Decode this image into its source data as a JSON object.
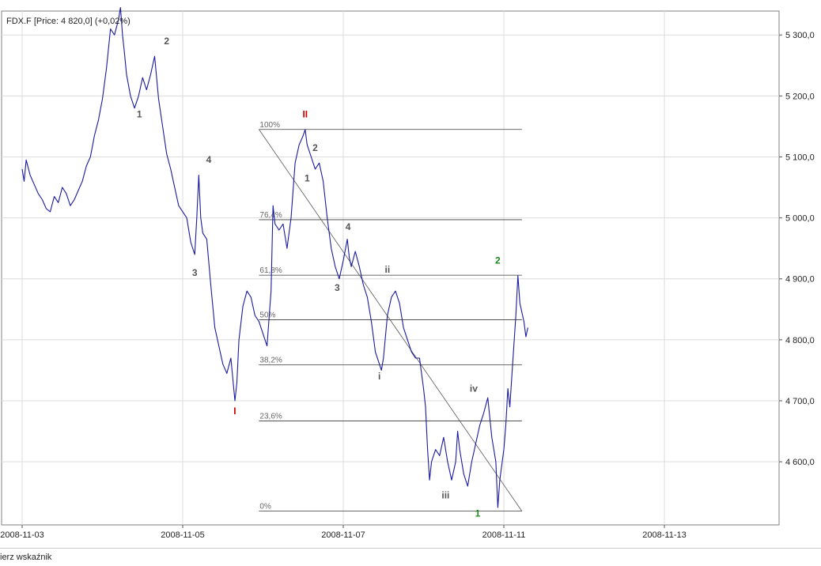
{
  "chart_data": {
    "type": "line",
    "title": "FDX.F [Price: 4 820,0] (+0,02%)",
    "x_ticks": [
      "2008-11-03",
      "2008-11-05",
      "2008-11-07",
      "2008-11-11",
      "2008-11-13"
    ],
    "y_ticks": [
      "4 600,0",
      "4 700,0",
      "4 800,0",
      "4 900,0",
      "5 000,0",
      "5 100,0",
      "5 200,0",
      "5 300,0"
    ],
    "y_tick_values": [
      4600,
      4700,
      4800,
      4900,
      5000,
      5100,
      5200,
      5300
    ],
    "ylim": [
      4510,
      5355
    ],
    "grid": true,
    "series": [
      {
        "color": "#1a1aa0",
        "points": [
          [
            0.0,
            5080
          ],
          [
            0.05,
            5060
          ],
          [
            0.1,
            5095
          ],
          [
            0.2,
            5070
          ],
          [
            0.3,
            5055
          ],
          [
            0.4,
            5040
          ],
          [
            0.5,
            5030
          ],
          [
            0.6,
            5015
          ],
          [
            0.7,
            5010
          ],
          [
            0.8,
            5035
          ],
          [
            0.9,
            5025
          ],
          [
            1.0,
            5050
          ],
          [
            1.1,
            5040
          ],
          [
            1.2,
            5020
          ],
          [
            1.3,
            5030
          ],
          [
            1.4,
            5045
          ],
          [
            1.5,
            5060
          ],
          [
            1.6,
            5085
          ],
          [
            1.7,
            5100
          ],
          [
            1.8,
            5135
          ],
          [
            1.9,
            5160
          ],
          [
            2.0,
            5195
          ],
          [
            2.1,
            5245
          ],
          [
            2.2,
            5310
          ],
          [
            2.3,
            5300
          ],
          [
            2.4,
            5325
          ],
          [
            2.45,
            5345
          ],
          [
            2.5,
            5300
          ],
          [
            2.55,
            5270
          ],
          [
            2.6,
            5235
          ],
          [
            2.7,
            5200
          ],
          [
            2.8,
            5180
          ],
          [
            2.9,
            5200
          ],
          [
            3.0,
            5230
          ],
          [
            3.1,
            5210
          ],
          [
            3.2,
            5235
          ],
          [
            3.3,
            5265
          ],
          [
            3.4,
            5195
          ],
          [
            3.5,
            5150
          ],
          [
            3.6,
            5105
          ],
          [
            3.7,
            5080
          ],
          [
            3.8,
            5050
          ],
          [
            3.9,
            5020
          ],
          [
            4.0,
            5010
          ],
          [
            4.1,
            5000
          ],
          [
            4.2,
            4960
          ],
          [
            4.3,
            4940
          ],
          [
            4.35,
            5000
          ],
          [
            4.4,
            5070
          ],
          [
            4.45,
            5000
          ],
          [
            4.5,
            4975
          ],
          [
            4.6,
            4965
          ],
          [
            4.7,
            4890
          ],
          [
            4.8,
            4820
          ],
          [
            4.9,
            4790
          ],
          [
            5.0,
            4760
          ],
          [
            5.1,
            4745
          ],
          [
            5.2,
            4770
          ],
          [
            5.3,
            4700
          ],
          [
            5.35,
            4730
          ],
          [
            5.4,
            4800
          ],
          [
            5.5,
            4855
          ],
          [
            5.6,
            4880
          ],
          [
            5.7,
            4870
          ],
          [
            5.8,
            4840
          ],
          [
            5.9,
            4830
          ],
          [
            6.0,
            4810
          ],
          [
            6.1,
            4790
          ],
          [
            6.2,
            4880
          ],
          [
            6.25,
            5020
          ],
          [
            6.3,
            4990
          ],
          [
            6.4,
            4980
          ],
          [
            6.5,
            4990
          ],
          [
            6.6,
            4950
          ],
          [
            6.7,
            5000
          ],
          [
            6.8,
            5090
          ],
          [
            6.9,
            5120
          ],
          [
            7.0,
            5135
          ],
          [
            7.05,
            5145
          ],
          [
            7.1,
            5120
          ],
          [
            7.2,
            5100
          ],
          [
            7.3,
            5080
          ],
          [
            7.4,
            5090
          ],
          [
            7.5,
            5060
          ],
          [
            7.6,
            5000
          ],
          [
            7.7,
            4950
          ],
          [
            7.8,
            4920
          ],
          [
            7.9,
            4900
          ],
          [
            8.0,
            4930
          ],
          [
            8.1,
            4965
          ],
          [
            8.15,
            4935
          ],
          [
            8.2,
            4920
          ],
          [
            8.3,
            4945
          ],
          [
            8.4,
            4920
          ],
          [
            8.5,
            4890
          ],
          [
            8.6,
            4870
          ],
          [
            8.7,
            4830
          ],
          [
            8.8,
            4780
          ],
          [
            8.9,
            4760
          ],
          [
            8.95,
            4750
          ],
          [
            9.0,
            4770
          ],
          [
            9.1,
            4840
          ],
          [
            9.2,
            4870
          ],
          [
            9.3,
            4880
          ],
          [
            9.4,
            4860
          ],
          [
            9.5,
            4820
          ],
          [
            9.6,
            4800
          ],
          [
            9.7,
            4780
          ],
          [
            9.8,
            4770
          ],
          [
            9.9,
            4770
          ],
          [
            10.0,
            4720
          ],
          [
            10.05,
            4690
          ],
          [
            10.1,
            4620
          ],
          [
            10.15,
            4570
          ],
          [
            10.2,
            4600
          ],
          [
            10.3,
            4620
          ],
          [
            10.4,
            4610
          ],
          [
            10.5,
            4640
          ],
          [
            10.6,
            4600
          ],
          [
            10.7,
            4570
          ],
          [
            10.8,
            4600
          ],
          [
            10.85,
            4650
          ],
          [
            10.9,
            4620
          ],
          [
            11.0,
            4580
          ],
          [
            11.1,
            4560
          ],
          [
            11.2,
            4600
          ],
          [
            11.3,
            4630
          ],
          [
            11.4,
            4660
          ],
          [
            11.5,
            4680
          ],
          [
            11.6,
            4705
          ],
          [
            11.7,
            4640
          ],
          [
            11.8,
            4600
          ],
          [
            11.85,
            4525
          ],
          [
            11.9,
            4570
          ],
          [
            12.0,
            4620
          ],
          [
            12.05,
            4660
          ],
          [
            12.1,
            4720
          ],
          [
            12.15,
            4690
          ],
          [
            12.2,
            4740
          ],
          [
            12.3,
            4840
          ],
          [
            12.35,
            4905
          ],
          [
            12.4,
            4860
          ],
          [
            12.5,
            4830
          ],
          [
            12.55,
            4805
          ],
          [
            12.6,
            4820
          ]
        ]
      }
    ],
    "fibonacci": {
      "levels": [
        {
          "label": "100%",
          "value": 5145
        },
        {
          "label": "76,4%",
          "value": 4997
        },
        {
          "label": "61,8%",
          "value": 4906
        },
        {
          "label": "50%",
          "value": 4833
        },
        {
          "label": "38,2%",
          "value": 4759
        },
        {
          "label": "23,6%",
          "value": 4667
        },
        {
          "label": "0%",
          "value": 4519
        }
      ],
      "x_start": 5.9,
      "x_end": 12.45
    },
    "trendline": {
      "from": [
        5.9,
        5145
      ],
      "to": [
        12.45,
        4519
      ]
    },
    "wave_labels": [
      {
        "text": "1",
        "x": 2.92,
        "y": 5165,
        "color": "#555555"
      },
      {
        "text": "2",
        "x": 3.6,
        "y": 5285,
        "color": "#555555"
      },
      {
        "text": "3",
        "x": 4.3,
        "y": 4905,
        "color": "#555555"
      },
      {
        "text": "4",
        "x": 4.65,
        "y": 5090,
        "color": "#555555"
      },
      {
        "text": "I",
        "x": 5.3,
        "y": 4678,
        "color": "#cc0000"
      },
      {
        "text": "II",
        "x": 7.05,
        "y": 5165,
        "color": "#cc0000"
      },
      {
        "text": "1",
        "x": 7.1,
        "y": 5060,
        "color": "#555555"
      },
      {
        "text": "2",
        "x": 7.3,
        "y": 5110,
        "color": "#555555"
      },
      {
        "text": "3",
        "x": 7.85,
        "y": 4880,
        "color": "#555555"
      },
      {
        "text": "4",
        "x": 8.12,
        "y": 4980,
        "color": "#555555"
      },
      {
        "text": "i",
        "x": 8.9,
        "y": 4735,
        "color": "#555555"
      },
      {
        "text": "ii",
        "x": 9.1,
        "y": 4910,
        "color": "#555555"
      },
      {
        "text": "iii",
        "x": 10.55,
        "y": 4540,
        "color": "#555555"
      },
      {
        "text": "iv",
        "x": 11.25,
        "y": 4715,
        "color": "#555555"
      },
      {
        "text": "1",
        "x": 11.35,
        "y": 4510,
        "color": "#1a8a1a"
      },
      {
        "text": "2",
        "x": 11.85,
        "y": 4925,
        "color": "#1a8a1a"
      }
    ]
  },
  "footer": {
    "text": "ierz wskaźnik"
  }
}
